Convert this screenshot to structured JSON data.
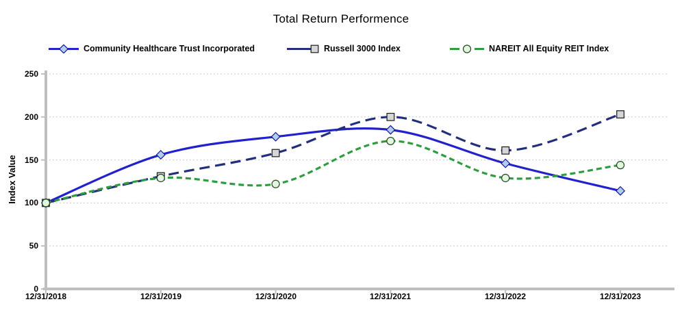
{
  "chart_data": {
    "type": "line",
    "title": "Total Return Performence",
    "ylabel": "Index Value",
    "ylim": [
      0,
      250
    ],
    "grid": "horizontal-dotted",
    "legend_position": "top",
    "x_labels": [
      "12/31/2018",
      "12/31/2019",
      "12/31/2020",
      "12/31/2021",
      "12/31/2022",
      "12/31/2023"
    ],
    "yticks": [
      250,
      200,
      150,
      100,
      50,
      0
    ],
    "series": [
      {
        "name": "Community Healthcare Trust Incorporated",
        "color": "#2222CC",
        "dash": "none",
        "marker": "diamond",
        "marker_fill": "#AECDEF",
        "marker_stroke": "#15159B",
        "values": [
          100,
          156,
          177,
          185,
          146,
          114
        ]
      },
      {
        "name": "Russell 3000 Index",
        "color": "#232E7D",
        "dash": "15 8",
        "marker": "square",
        "marker_fill": "#D6D6D6",
        "marker_stroke": "#1A1A1A",
        "values": [
          100,
          131,
          158,
          200,
          161,
          203
        ]
      },
      {
        "name": "NAREIT All Equity REIT Index",
        "color": "#2E9C3F",
        "dash": "8 5",
        "marker": "circle",
        "marker_fill": "#E3F6E0",
        "marker_stroke": "#1F4A1F",
        "values": [
          100,
          129,
          122,
          172,
          129,
          144
        ]
      }
    ],
    "axis_color": "#BFBFBF",
    "gridline_color": "#C9C9C9",
    "text_color": "#000000"
  }
}
